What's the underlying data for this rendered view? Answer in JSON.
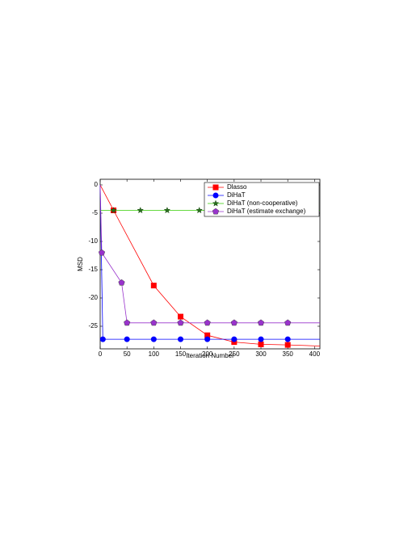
{
  "chart_data": {
    "type": "line",
    "xlabel": "Iteration Number",
    "ylabel": "MSD",
    "xlim": [
      0,
      410
    ],
    "xticks": [
      0,
      50,
      100,
      150,
      200,
      250,
      300,
      350,
      400
    ],
    "ylim": [
      -29,
      1
    ],
    "yticks": [
      0,
      -5,
      -10,
      -15,
      -20,
      -25
    ],
    "legend": "upper right",
    "series": [
      {
        "name": "Dlasso",
        "color": "#ff0000",
        "marker": "square",
        "x": [
          0,
          25,
          100,
          150,
          200,
          250,
          300,
          350,
          410
        ],
        "values": [
          0,
          -4.5,
          -17.8,
          -23.3,
          -26.6,
          -27.8,
          -28.2,
          -28.3,
          -28.5
        ]
      },
      {
        "name": "DiHaT",
        "color": "#0000ff",
        "marker": "circle",
        "x": [
          0,
          5,
          50,
          100,
          150,
          200,
          250,
          300,
          350,
          410
        ],
        "values": [
          0,
          -27.3,
          -27.3,
          -27.3,
          -27.3,
          -27.3,
          -27.3,
          -27.3,
          -27.3,
          -27.3
        ]
      },
      {
        "name": "DiHaT (non-cooperative)",
        "color": "#33cc00",
        "marker": "star",
        "x": [
          0,
          25,
          75,
          125,
          185,
          410
        ],
        "values": [
          -4.5,
          -4.5,
          -4.5,
          -4.5,
          -4.5,
          -4.5
        ]
      },
      {
        "name": "DiHaT (estimate exchange)",
        "color": "#9933cc",
        "marker": "pentagon",
        "x": [
          0,
          3,
          40,
          50,
          100,
          150,
          200,
          250,
          300,
          350,
          410
        ],
        "values": [
          0,
          -12,
          -17.3,
          -24.4,
          -24.4,
          -24.4,
          -24.4,
          -24.4,
          -24.4,
          -24.4,
          -24.4
        ]
      }
    ]
  }
}
